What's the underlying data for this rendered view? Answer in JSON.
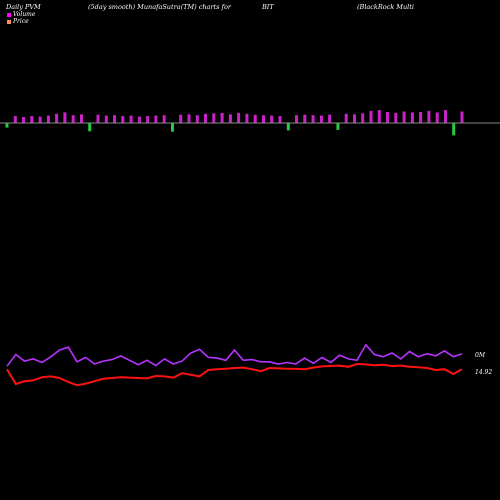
{
  "header": {
    "title": "Daily PVM",
    "subtitle": "(5day smooth) MunafaSutra(TM) charts for",
    "symbol": "BIT",
    "company": "(BlackRock Multi"
  },
  "legend": [
    {
      "label": "Volume",
      "color": "#ff00ff"
    },
    {
      "label": "Price",
      "color": "#ff8c69"
    }
  ],
  "colors": {
    "background": "#000000",
    "volume_up": "#cc22cc",
    "volume_down": "#22cc44",
    "volume_line": "#b833ff",
    "price_line": "#ff1111",
    "baseline": "#888888"
  },
  "chart_data": [
    {
      "type": "bar",
      "name": "volume-bars",
      "values": [
        -1.0,
        1.5,
        1.3,
        1.5,
        1.4,
        1.6,
        2.0,
        2.3,
        1.7,
        1.9,
        -1.8,
        1.8,
        1.6,
        1.7,
        1.5,
        1.6,
        1.4,
        1.5,
        1.6,
        1.7,
        -1.9,
        1.8,
        1.9,
        1.7,
        2.0,
        2.1,
        2.2,
        1.9,
        2.2,
        2.0,
        1.8,
        1.7,
        1.6,
        1.5,
        -1.6,
        1.7,
        1.8,
        1.7,
        1.6,
        1.8,
        -1.5,
        2.0,
        1.9,
        2.1,
        2.6,
        2.8,
        2.4,
        2.2,
        2.5,
        2.3,
        2.4,
        2.6,
        2.3,
        2.8,
        -2.7,
        2.5
      ],
      "signs": [
        "down",
        "up",
        "up",
        "up",
        "up",
        "up",
        "up",
        "up",
        "up",
        "up",
        "down",
        "up",
        "up",
        "up",
        "up",
        "up",
        "up",
        "up",
        "up",
        "up",
        "down",
        "up",
        "up",
        "up",
        "up",
        "up",
        "up",
        "up",
        "up",
        "up",
        "up",
        "up",
        "up",
        "up",
        "down",
        "up",
        "up",
        "up",
        "up",
        "up",
        "down",
        "up",
        "up",
        "up",
        "up",
        "up",
        "up",
        "up",
        "up",
        "up",
        "up",
        "up",
        "up",
        "up",
        "down",
        "up"
      ]
    },
    {
      "type": "line",
      "name": "volume-line",
      "label": "0M",
      "values": [
        5.2,
        6.8,
        5.9,
        6.2,
        5.7,
        6.5,
        7.4,
        7.8,
        5.8,
        6.4,
        5.5,
        5.9,
        6.1,
        6.6,
        6.0,
        5.4,
        6.0,
        5.3,
        6.2,
        5.5,
        5.9,
        7.0,
        7.5,
        6.4,
        6.3,
        6.0,
        7.4,
        6.0,
        6.1,
        5.8,
        5.8,
        5.5,
        5.7,
        5.5,
        6.3,
        5.6,
        6.4,
        5.7,
        6.7,
        6.2,
        6.0,
        8.1,
        6.8,
        6.5,
        7.0,
        6.2,
        7.2,
        6.5,
        6.9,
        6.6,
        7.3,
        6.5,
        6.9
      ]
    },
    {
      "type": "line",
      "name": "price-line",
      "label": "14.92",
      "values": [
        14.92,
        14.55,
        14.62,
        14.64,
        14.72,
        14.74,
        14.7,
        14.6,
        14.52,
        14.56,
        14.62,
        14.68,
        14.7,
        14.72,
        14.71,
        14.7,
        14.69,
        14.75,
        14.74,
        14.71,
        14.82,
        14.78,
        14.74,
        14.9,
        14.92,
        14.93,
        14.95,
        14.96,
        14.92,
        14.87,
        14.95,
        14.94,
        14.93,
        14.93,
        14.92,
        14.96,
        14.99,
        15.0,
        15.01,
        14.98,
        15.05,
        15.04,
        15.02,
        15.03,
        15.0,
        15.01,
        14.98,
        14.97,
        14.95,
        14.9,
        14.92,
        14.8,
        14.92
      ]
    }
  ]
}
